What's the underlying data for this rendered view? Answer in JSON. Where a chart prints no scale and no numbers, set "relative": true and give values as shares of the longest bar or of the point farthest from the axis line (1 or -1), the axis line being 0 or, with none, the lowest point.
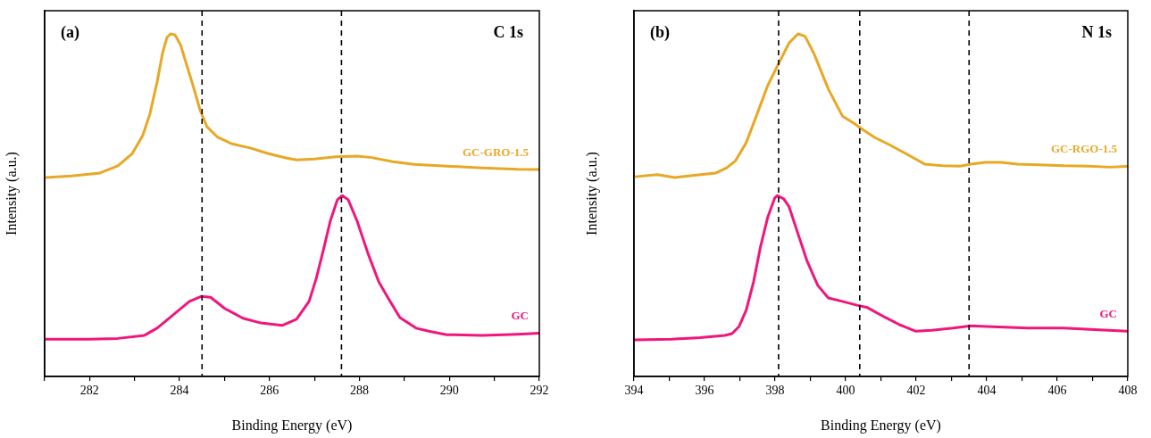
{
  "chart_data": [
    {
      "type": "line",
      "xlabel": "Binding Energy (eV)",
      "ylabel": "Intensity (a.u.)",
      "relative": true,
      "legend": false,
      "xlim": [
        281,
        292
      ],
      "xticks": [
        {
          "value": 281,
          "label": null
        },
        282,
        {
          "value": 283,
          "label": null
        },
        284,
        {
          "value": 285,
          "label": null
        },
        286,
        {
          "value": 287,
          "label": null
        },
        288,
        {
          "value": 289,
          "label": null
        },
        290,
        {
          "value": 291,
          "label": null
        },
        292
      ],
      "annotations": [
        "(a)",
        "C 1s"
      ],
      "ref_lines": [
        {
          "axis": "x",
          "value": 284.5,
          "color": "#000000",
          "line_style": "dashed"
        },
        {
          "axis": "x",
          "value": 287.6,
          "color": "#000000",
          "line_style": "dashed"
        }
      ],
      "series": [
        {
          "name": "GC-GRO-1.5",
          "color": "#e8a825",
          "x": [
            281.02,
            281.6,
            282.23,
            282.63,
            282.95,
            283.18,
            283.34,
            283.5,
            283.62,
            283.72,
            283.8,
            283.9,
            284.02,
            284.14,
            284.3,
            284.46,
            284.61,
            284.85,
            285.17,
            285.57,
            285.96,
            286.36,
            286.6,
            287.0,
            287.47,
            287.95,
            288.27,
            288.74,
            289.22,
            289.94,
            290.73,
            291.52,
            292.0
          ],
          "values": [
            0.581,
            0.585,
            0.594,
            0.615,
            0.651,
            0.703,
            0.766,
            0.859,
            0.943,
            0.99,
            1.0,
            0.997,
            0.969,
            0.917,
            0.849,
            0.776,
            0.729,
            0.698,
            0.679,
            0.667,
            0.651,
            0.638,
            0.632,
            0.635,
            0.641,
            0.643,
            0.639,
            0.627,
            0.619,
            0.614,
            0.609,
            0.605,
            0.604
          ]
        },
        {
          "name": "GC",
          "color": "#f0167c",
          "x": [
            281.02,
            281.99,
            282.63,
            283.22,
            283.5,
            283.74,
            283.98,
            284.22,
            284.49,
            284.69,
            285.01,
            285.41,
            285.81,
            286.28,
            286.6,
            286.88,
            287.04,
            287.2,
            287.35,
            287.51,
            287.62,
            287.75,
            287.95,
            288.19,
            288.43,
            288.66,
            288.9,
            289.26,
            289.54,
            289.94,
            290.73,
            291.52,
            292.0
          ],
          "values": [
            0.109,
            0.109,
            0.111,
            0.12,
            0.141,
            0.167,
            0.193,
            0.219,
            0.234,
            0.231,
            0.198,
            0.17,
            0.156,
            0.149,
            0.167,
            0.219,
            0.286,
            0.37,
            0.453,
            0.516,
            0.528,
            0.516,
            0.453,
            0.359,
            0.276,
            0.224,
            0.172,
            0.141,
            0.132,
            0.122,
            0.12,
            0.123,
            0.126
          ]
        }
      ]
    },
    {
      "type": "line",
      "xlabel": "Binding Energy (eV)",
      "ylabel": "Intensity (a.u.)",
      "relative": true,
      "legend": false,
      "xlim": [
        394,
        408
      ],
      "xticks": [
        394,
        {
          "value": 395,
          "label": null
        },
        396,
        {
          "value": 397,
          "label": null
        },
        398,
        {
          "value": 399,
          "label": null
        },
        400,
        {
          "value": 401,
          "label": null
        },
        402,
        {
          "value": 403,
          "label": null
        },
        404,
        {
          "value": 405,
          "label": null
        },
        406,
        {
          "value": 407,
          "label": null
        },
        408
      ],
      "annotations": [
        "(b)",
        "N 1s"
      ],
      "ref_lines": [
        {
          "axis": "x",
          "value": 398.1,
          "color": "#000000",
          "line_style": "dashed"
        },
        {
          "axis": "x",
          "value": 400.4,
          "color": "#000000",
          "line_style": "dashed"
        },
        {
          "axis": "x",
          "value": 403.5,
          "color": "#000000",
          "line_style": "dashed"
        }
      ],
      "series": [
        {
          "name": "GC-RGO-1.5",
          "color": "#e8a825",
          "x": [
            394.03,
            394.66,
            395.16,
            395.77,
            396.32,
            396.63,
            396.88,
            397.18,
            397.49,
            397.79,
            398.09,
            398.4,
            398.65,
            398.85,
            399.1,
            399.51,
            399.91,
            400.22,
            400.44,
            400.82,
            401.23,
            401.73,
            402.24,
            402.74,
            403.25,
            403.55,
            403.96,
            404.41,
            404.87,
            405.47,
            406.18,
            406.89,
            407.49,
            407.98
          ],
          "values": [
            0.583,
            0.589,
            0.581,
            0.588,
            0.594,
            0.609,
            0.63,
            0.682,
            0.766,
            0.849,
            0.911,
            0.974,
            1.0,
            0.993,
            0.943,
            0.839,
            0.76,
            0.74,
            0.724,
            0.698,
            0.677,
            0.649,
            0.62,
            0.615,
            0.614,
            0.62,
            0.625,
            0.625,
            0.62,
            0.618,
            0.615,
            0.614,
            0.611,
            0.613
          ]
        },
        {
          "name": "GC",
          "color": "#f0167c",
          "x": [
            394.03,
            395.06,
            395.87,
            396.58,
            396.78,
            396.98,
            397.18,
            397.39,
            397.59,
            397.79,
            397.99,
            398.07,
            398.25,
            398.4,
            398.6,
            398.9,
            399.21,
            399.51,
            399.91,
            400.32,
            400.62,
            401.13,
            401.53,
            401.99,
            402.44,
            403.05,
            403.55,
            404.16,
            405.17,
            406.18,
            407.19,
            407.98
          ],
          "values": [
            0.107,
            0.109,
            0.113,
            0.12,
            0.125,
            0.146,
            0.193,
            0.276,
            0.38,
            0.464,
            0.521,
            0.528,
            0.518,
            0.495,
            0.432,
            0.339,
            0.266,
            0.229,
            0.219,
            0.208,
            0.201,
            0.172,
            0.151,
            0.132,
            0.135,
            0.141,
            0.148,
            0.145,
            0.141,
            0.141,
            0.136,
            0.132
          ]
        }
      ]
    }
  ]
}
